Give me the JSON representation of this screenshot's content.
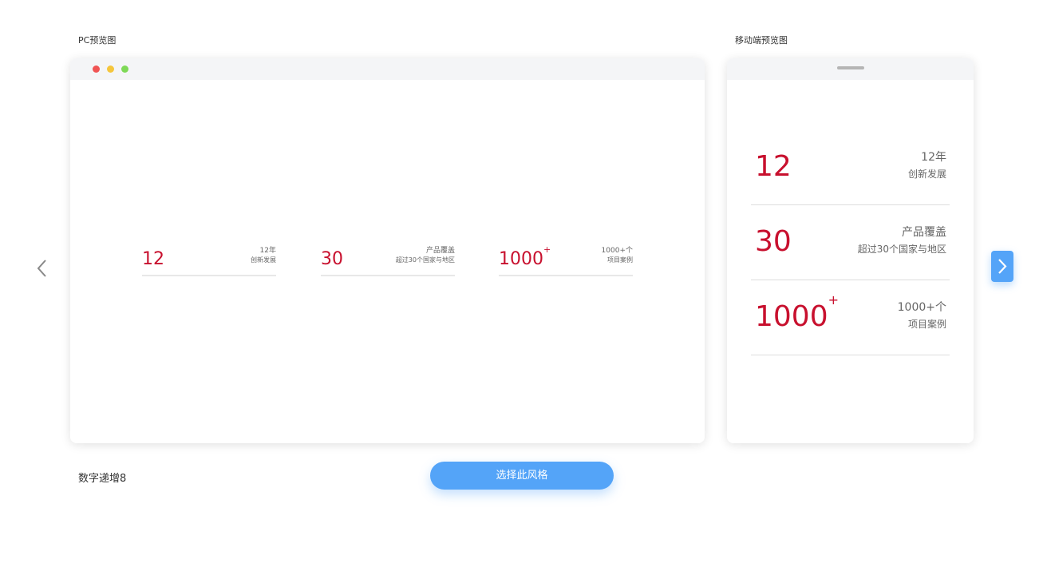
{
  "pc_label": "PC预览图",
  "mobile_label": "移动端预览图",
  "style_name": "数字递增8",
  "select_button": "选择此风格",
  "colors": {
    "accent": "#c8102e",
    "button": "#54a4f8",
    "dots": [
      "#f05454",
      "#f5c63c",
      "#7ed957"
    ]
  },
  "stats": [
    {
      "number": "12",
      "sup": "",
      "title": "12年",
      "subtitle": "创新发展"
    },
    {
      "number": "30",
      "sup": "",
      "title": "产品覆盖",
      "subtitle": "超过30个国家与地区"
    },
    {
      "number": "1000",
      "sup": "+",
      "title": "1000+个",
      "subtitle": "项目案例"
    }
  ],
  "icons": {
    "prev": "chevron-left-icon",
    "next": "chevron-right-icon"
  }
}
